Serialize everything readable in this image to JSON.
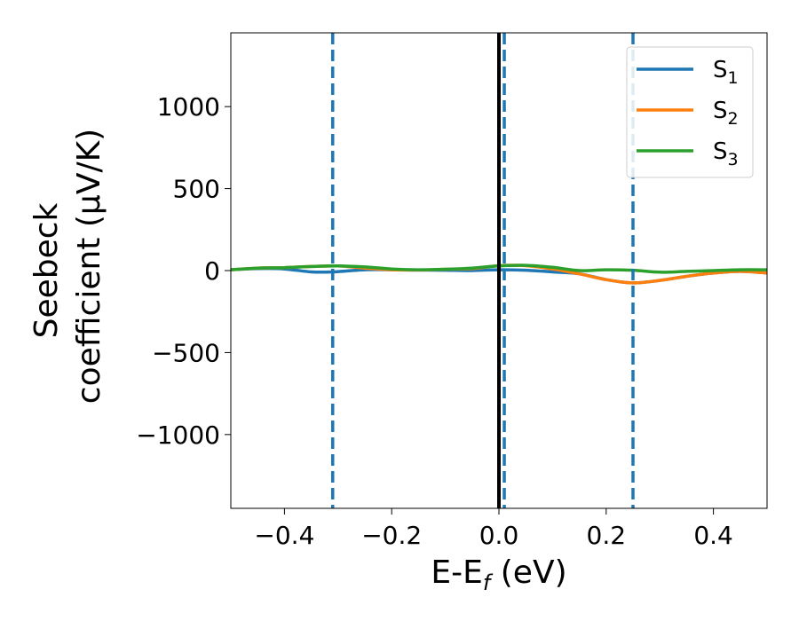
{
  "chart_data": {
    "type": "line",
    "xlabel": "E-E",
    "xlabel_sub": "f",
    "xlabel_unit": " (eV)",
    "ylabel_line1": "Seebeck",
    "ylabel_line2": "coefficient  (μV/K)",
    "xlim": [
      -0.5,
      0.5
    ],
    "ylim": [
      -1450,
      1450
    ],
    "xticks": [
      -0.4,
      -0.2,
      0.0,
      0.2,
      0.4
    ],
    "xtick_labels": [
      "−0.4",
      "−0.2",
      "0.0",
      "0.2",
      "0.4"
    ],
    "yticks": [
      1000,
      500,
      0,
      -500,
      -1000
    ],
    "ytick_labels": [
      "1000",
      "500",
      "0",
      "−500",
      "−1000"
    ],
    "grid": false,
    "legend_position": "top-right",
    "vlines": [
      {
        "x": -0.31,
        "style": "dashed",
        "color": "#1f77b4"
      },
      {
        "x": 0.0,
        "style": "solid",
        "color": "#000000"
      },
      {
        "x": 0.01,
        "style": "dashed",
        "color": "#1f77b4"
      },
      {
        "x": 0.25,
        "style": "dashed",
        "color": "#1f77b4"
      }
    ],
    "series": [
      {
        "name": "S",
        "sub": "1",
        "color": "#1f77b4",
        "x": [
          -0.5,
          -0.45,
          -0.4,
          -0.35,
          -0.31,
          -0.25,
          -0.2,
          -0.15,
          -0.1,
          -0.05,
          0.0,
          0.05,
          0.1,
          0.15,
          0.2,
          0.25,
          0.3,
          0.35,
          0.4,
          0.45,
          0.5
        ],
        "y": [
          5,
          12,
          10,
          -8,
          -8,
          5,
          5,
          3,
          2,
          0,
          5,
          2,
          -8,
          -20,
          -55,
          -75,
          -60,
          -35,
          -15,
          -5,
          -15
        ]
      },
      {
        "name": "S",
        "sub": "2",
        "color": "#ff7f0e",
        "x": [
          -0.5,
          -0.45,
          -0.4,
          -0.35,
          -0.3,
          -0.25,
          -0.2,
          -0.15,
          -0.1,
          -0.05,
          0.0,
          0.05,
          0.1,
          0.15,
          0.2,
          0.25,
          0.3,
          0.35,
          0.4,
          0.45,
          0.5
        ],
        "y": [
          5,
          15,
          18,
          25,
          28,
          15,
          5,
          3,
          8,
          12,
          30,
          30,
          10,
          -20,
          -55,
          -75,
          -60,
          -35,
          -15,
          -5,
          -15
        ]
      },
      {
        "name": "S",
        "sub": "3",
        "color": "#2ca02c",
        "x": [
          -0.5,
          -0.45,
          -0.4,
          -0.35,
          -0.3,
          -0.25,
          -0.2,
          -0.15,
          -0.1,
          -0.05,
          0.0,
          0.05,
          0.1,
          0.15,
          0.2,
          0.25,
          0.3,
          0.35,
          0.4,
          0.45,
          0.5
        ],
        "y": [
          5,
          15,
          18,
          25,
          28,
          22,
          10,
          5,
          8,
          15,
          28,
          32,
          20,
          0,
          5,
          2,
          -10,
          -5,
          0,
          5,
          5
        ]
      }
    ]
  }
}
